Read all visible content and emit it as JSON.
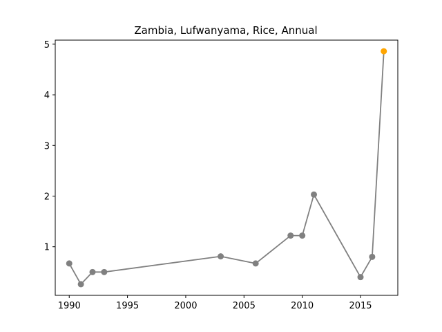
{
  "chart_data": {
    "type": "line",
    "title": "Zambia, Lufwanyama, Rice, Annual",
    "xlabel": "",
    "ylabel": "",
    "xlim": [
      1988.8,
      2018.2
    ],
    "ylim": [
      0.04,
      5.08
    ],
    "x_ticks": [
      1990,
      1995,
      2000,
      2005,
      2010,
      2015
    ],
    "y_ticks": [
      1,
      2,
      3,
      4,
      5
    ],
    "grid": false,
    "line_color": "#808080",
    "marker_color": "#808080",
    "highlight_color": "#FFA500",
    "series": [
      {
        "x": [
          1990,
          1991,
          1992,
          1993,
          2003,
          2006,
          2009,
          2010,
          2011,
          2015,
          2016,
          2017
        ],
        "y": [
          0.67,
          0.26,
          0.5,
          0.5,
          0.81,
          0.67,
          1.22,
          1.22,
          2.03,
          0.4,
          0.8,
          4.86
        ]
      }
    ],
    "highlight_point": {
      "x": 2017,
      "y": 4.86
    }
  }
}
